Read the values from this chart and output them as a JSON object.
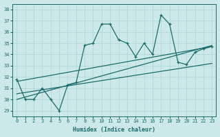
{
  "xlabel": "Humidex (Indice chaleur)",
  "ylabel": "",
  "xlim": [
    -0.5,
    23.5
  ],
  "ylim": [
    28.5,
    38.5
  ],
  "xticks": [
    0,
    1,
    2,
    3,
    4,
    5,
    6,
    7,
    8,
    9,
    10,
    11,
    12,
    13,
    14,
    15,
    16,
    17,
    18,
    19,
    20,
    21,
    22,
    23
  ],
  "yticks": [
    29,
    30,
    31,
    32,
    33,
    34,
    35,
    36,
    37,
    38
  ],
  "bg_color": "#cce8e8",
  "grid_color": "#b0d8d8",
  "line_color": "#1a6b6b",
  "series": {
    "main": {
      "x": [
        0,
        1,
        2,
        3,
        4,
        5,
        6,
        7,
        8,
        9,
        10,
        11,
        12,
        13,
        14,
        15,
        16,
        17,
        18,
        19,
        20,
        21,
        22,
        23
      ],
      "y": [
        31.8,
        30.0,
        30.0,
        31.0,
        30.0,
        29.0,
        31.3,
        31.5,
        34.8,
        35.0,
        36.7,
        36.7,
        35.3,
        35.0,
        33.8,
        35.0,
        34.0,
        37.5,
        36.7,
        33.3,
        33.1,
        34.2,
        34.5,
        34.7
      ]
    },
    "trend1": {
      "x": [
        0,
        23
      ],
      "y": [
        30.0,
        34.8
      ]
    },
    "trend2": {
      "x": [
        0,
        23
      ],
      "y": [
        30.5,
        33.2
      ]
    },
    "trend3": {
      "x": [
        0,
        23
      ],
      "y": [
        31.6,
        34.7
      ]
    }
  }
}
